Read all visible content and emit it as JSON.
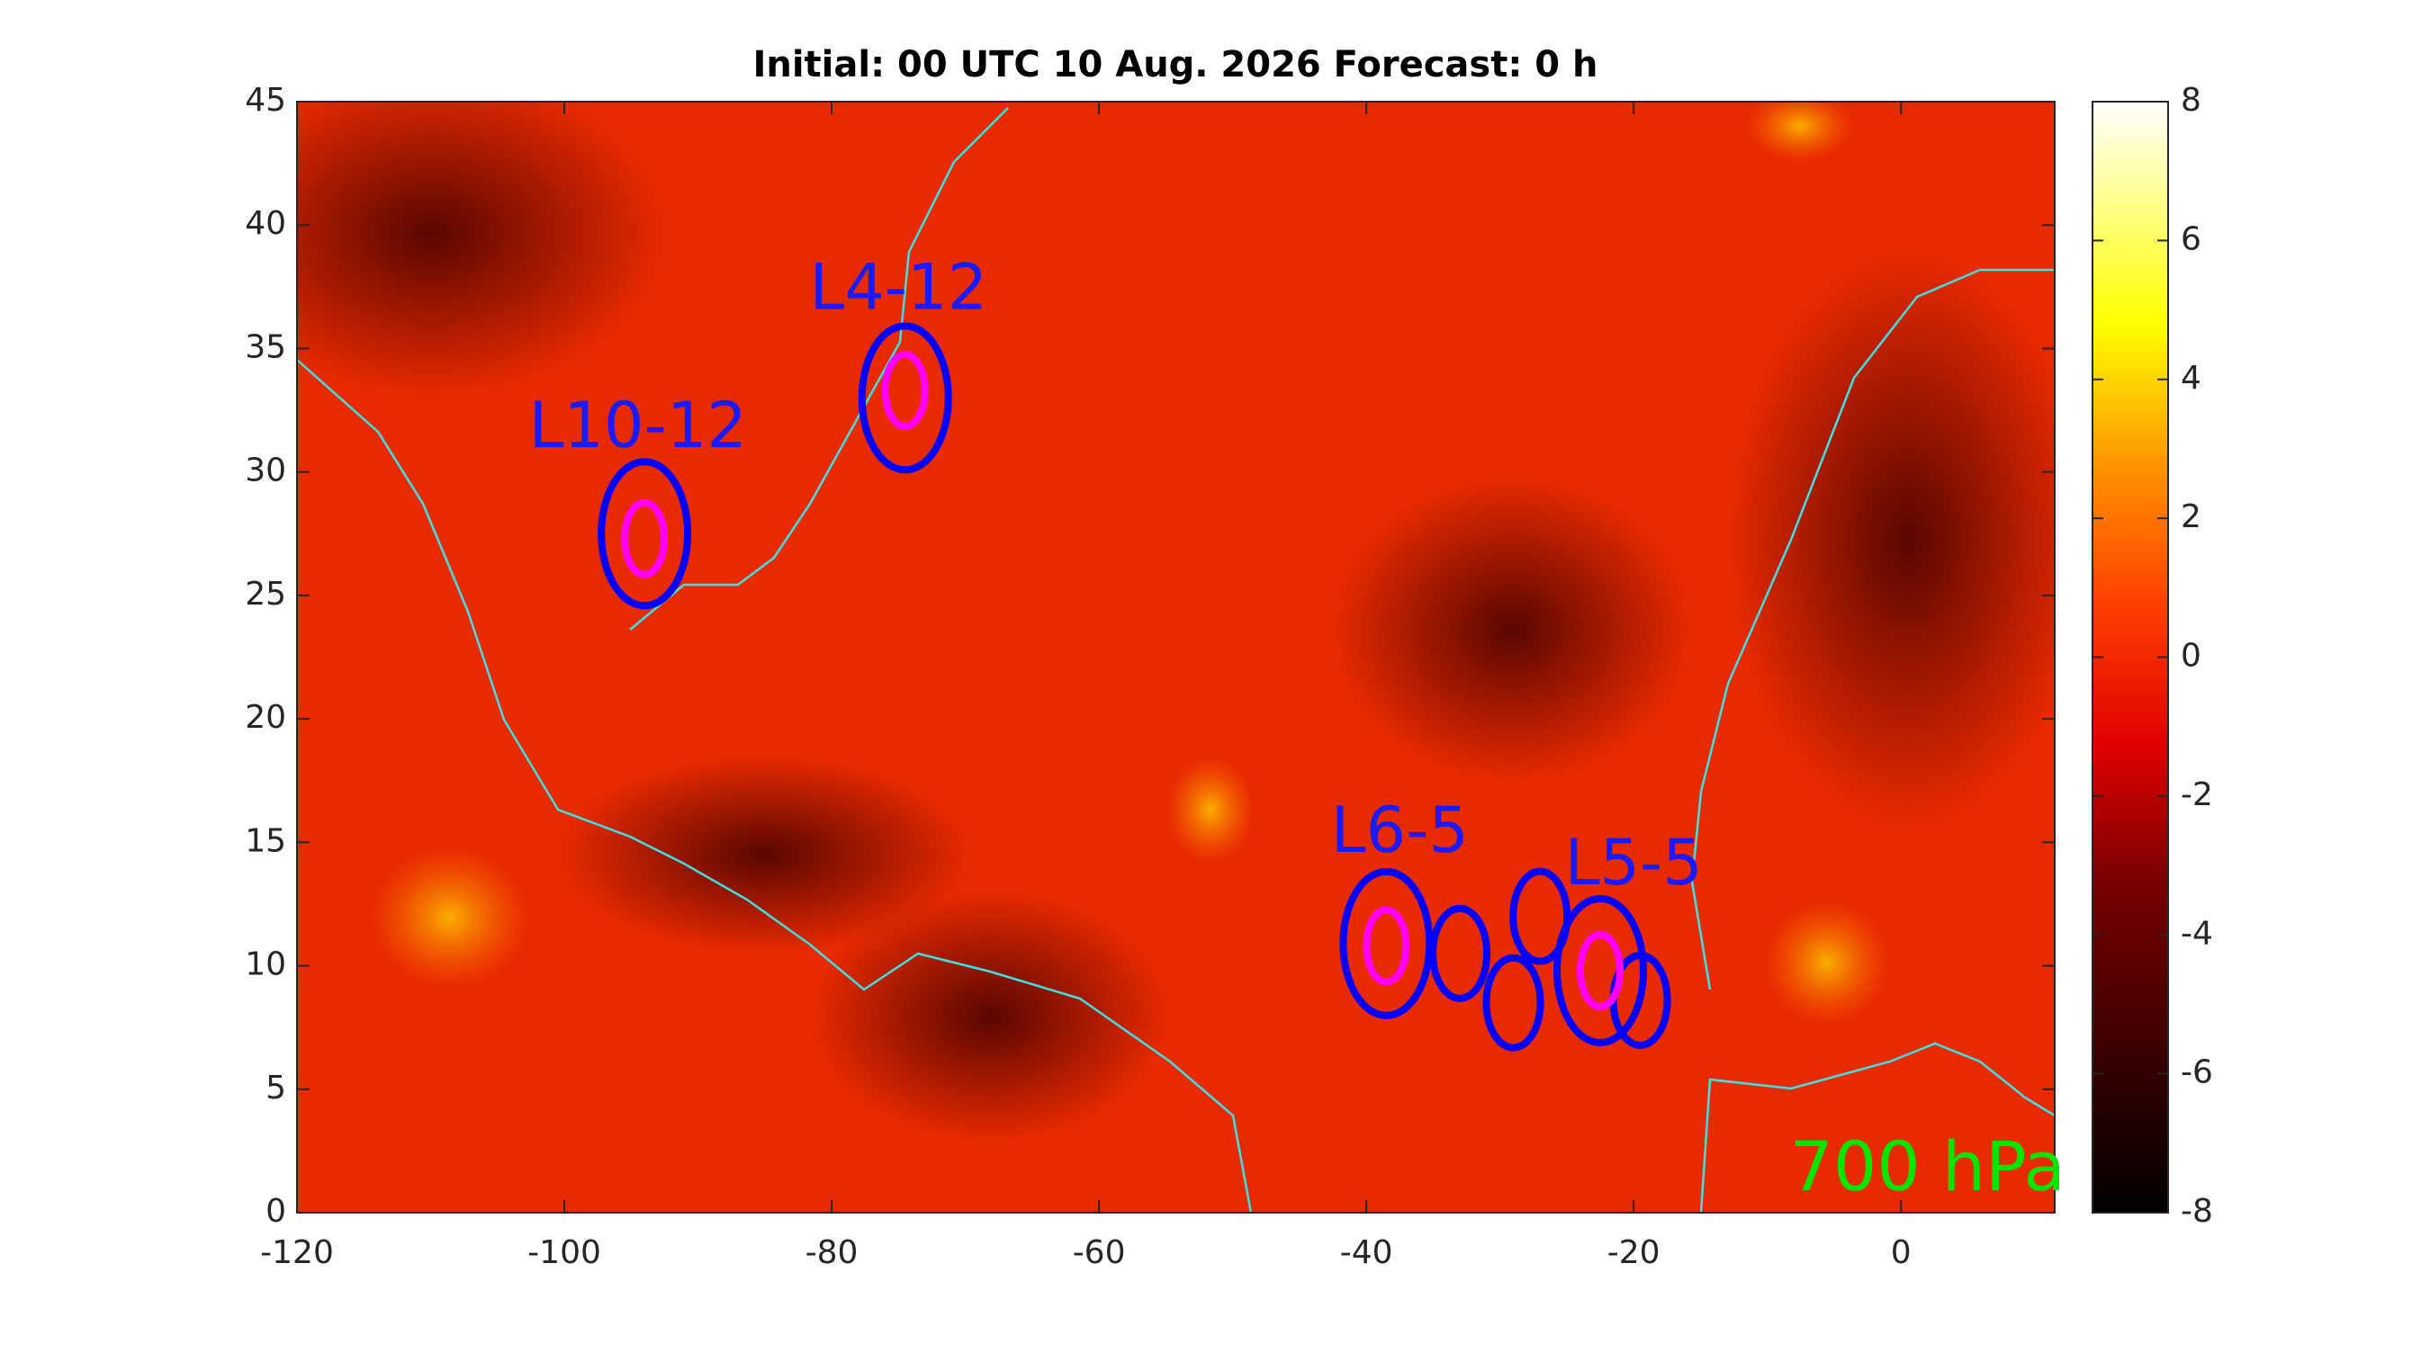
{
  "chart_data": {
    "type": "map",
    "title": "Initial: 00 UTC 10 Aug. 2026 Forecast: 0 h",
    "level_label": "700 hPa",
    "xlim": [
      -120,
      11.5
    ],
    "ylim": [
      0,
      45
    ],
    "xticks": [
      -120,
      -100,
      -80,
      -60,
      -40,
      -20,
      0
    ],
    "yticks": [
      0,
      5,
      10,
      15,
      20,
      25,
      30,
      35,
      40,
      45
    ],
    "clim": [
      -8,
      8
    ],
    "cticks": [
      -8,
      -6,
      -4,
      -2,
      0,
      2,
      4,
      6,
      8
    ],
    "blue_circles": {
      "color": "#0000ff",
      "lon": [
        -94,
        -74.5,
        -38.5,
        -22.5,
        -33,
        -29,
        -27,
        -19.5
      ],
      "lat": [
        27.5,
        33,
        10.9,
        9.8,
        10.5,
        8.5,
        12,
        8.6
      ]
    },
    "magenta_circles": {
      "color": "#ff00ff",
      "lon": [
        -94,
        -74.5,
        -38.5,
        -22.5
      ],
      "lat": [
        27.3,
        33.3,
        10.8,
        9.8
      ]
    },
    "system_labels": [
      {
        "text": "L10-12",
        "lon": -94.5,
        "lat": 31.7
      },
      {
        "text": "L4-12",
        "lon": -75,
        "lat": 37.3
      },
      {
        "text": "L6-5",
        "lon": -37.5,
        "lat": 15.3
      },
      {
        "text": "L5-5",
        "lon": -20,
        "lat": 14
      }
    ]
  }
}
